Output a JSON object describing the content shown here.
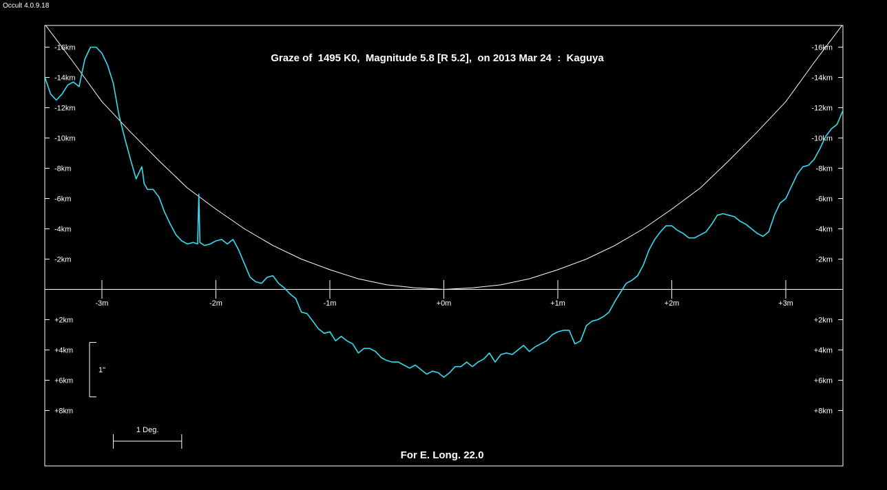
{
  "app": {
    "title": "Occult 4.0.9.18"
  },
  "chart_data": {
    "type": "line",
    "title": "Graze of  1495 K0,  Magnitude 5.8 [R 5.2],  on 2013 Mar 24  :  Kaguya",
    "footer": "For E. Long. 22.0",
    "xlabel": "",
    "ylabel": "",
    "x_unit": "minutes",
    "y_unit": "km",
    "xlim": [
      -3.5,
      3.5
    ],
    "ylim": [
      -17.5,
      11.5
    ],
    "grid": false,
    "x_ticks": [
      {
        "value": -3,
        "label": "-3m"
      },
      {
        "value": -2,
        "label": "-2m"
      },
      {
        "value": -1,
        "label": "-1m"
      },
      {
        "value": 0,
        "label": "+0m"
      },
      {
        "value": 1,
        "label": "+1m"
      },
      {
        "value": 2,
        "label": "+2m"
      },
      {
        "value": 3,
        "label": "+3m"
      }
    ],
    "y_ticks_left": [
      {
        "value": -16,
        "label": "-16km"
      },
      {
        "value": -14,
        "label": "-14km"
      },
      {
        "value": -12,
        "label": "-12km"
      },
      {
        "value": -10,
        "label": "-10km"
      },
      {
        "value": -8,
        "label": "-8km"
      },
      {
        "value": -6,
        "label": "-6km"
      },
      {
        "value": -4,
        "label": "-4km"
      },
      {
        "value": -2,
        "label": "-2km"
      },
      {
        "value": 2,
        "label": "+2km"
      },
      {
        "value": 4,
        "label": "+4km"
      },
      {
        "value": 6,
        "label": "+6km"
      },
      {
        "value": 8,
        "label": "+8km"
      }
    ],
    "y_ticks_right": [
      {
        "value": -16,
        "label": "-16km"
      },
      {
        "value": -14,
        "label": "-14km"
      },
      {
        "value": -12,
        "label": "-12km"
      },
      {
        "value": -10,
        "label": "-10km"
      },
      {
        "value": -8,
        "label": "-8km"
      },
      {
        "value": -6,
        "label": "-6km"
      },
      {
        "value": -4,
        "label": "-4km"
      },
      {
        "value": -2,
        "label": "-2km"
      },
      {
        "value": 2,
        "label": "+2km"
      },
      {
        "value": 4,
        "label": "+4km"
      },
      {
        "value": 6,
        "label": "+6km"
      },
      {
        "value": 8,
        "label": "+8km"
      }
    ],
    "scale_bars": {
      "arcsec": {
        "label": "1\"",
        "from_km": 3.5,
        "to_km": 7.1
      },
      "degree": {
        "label": "1 Deg.",
        "from_min": -2.9,
        "to_min": -2.3
      }
    },
    "colors": {
      "background": "#000000",
      "axes": "#ffffff",
      "profile": "#33e0f0",
      "path": "#ffffff"
    },
    "series": [
      {
        "kind": "path-curve",
        "x": [
          -3.5,
          -3.25,
          -3.0,
          -2.75,
          -2.5,
          -2.25,
          -2.0,
          -1.75,
          -1.5,
          -1.25,
          -1.0,
          -0.75,
          -0.5,
          -0.25,
          0.0,
          0.25,
          0.5,
          0.75,
          1.0,
          1.25,
          1.5,
          1.75,
          2.0,
          2.25,
          2.5,
          2.75,
          3.0,
          3.25,
          3.5
        ],
        "y": [
          -17.5,
          -15.0,
          -12.4,
          -10.4,
          -8.5,
          -6.7,
          -5.3,
          -4.0,
          -2.9,
          -2.0,
          -1.3,
          -0.7,
          -0.3,
          -0.1,
          0.0,
          -0.1,
          -0.3,
          -0.7,
          -1.3,
          -2.0,
          -2.9,
          -4.0,
          -5.3,
          -6.7,
          -8.5,
          -10.4,
          -12.4,
          -15.0,
          -17.5
        ]
      },
      {
        "kind": "limb-profile",
        "x": [
          -3.5,
          -3.45,
          -3.4,
          -3.35,
          -3.3,
          -3.25,
          -3.2,
          -3.15,
          -3.1,
          -3.05,
          -3.0,
          -2.95,
          -2.9,
          -2.85,
          -2.8,
          -2.75,
          -2.7,
          -2.65,
          -2.64,
          -2.63,
          -2.6,
          -2.55,
          -2.5,
          -2.45,
          -2.4,
          -2.35,
          -2.3,
          -2.25,
          -2.2,
          -2.16,
          -2.15,
          -2.14,
          -2.1,
          -2.05,
          -2.0,
          -1.95,
          -1.9,
          -1.85,
          -1.8,
          -1.75,
          -1.7,
          -1.65,
          -1.6,
          -1.55,
          -1.5,
          -1.45,
          -1.4,
          -1.35,
          -1.3,
          -1.25,
          -1.2,
          -1.15,
          -1.1,
          -1.05,
          -1.0,
          -0.95,
          -0.9,
          -0.85,
          -0.8,
          -0.75,
          -0.7,
          -0.65,
          -0.6,
          -0.55,
          -0.5,
          -0.45,
          -0.4,
          -0.35,
          -0.3,
          -0.25,
          -0.2,
          -0.15,
          -0.1,
          -0.05,
          0.0,
          0.05,
          0.1,
          0.15,
          0.2,
          0.25,
          0.3,
          0.35,
          0.4,
          0.45,
          0.5,
          0.55,
          0.6,
          0.65,
          0.7,
          0.75,
          0.8,
          0.85,
          0.9,
          0.95,
          1.0,
          1.05,
          1.1,
          1.15,
          1.2,
          1.25,
          1.3,
          1.35,
          1.4,
          1.45,
          1.5,
          1.55,
          1.6,
          1.65,
          1.7,
          1.75,
          1.8,
          1.85,
          1.9,
          1.95,
          2.0,
          2.05,
          2.1,
          2.15,
          2.2,
          2.25,
          2.3,
          2.35,
          2.4,
          2.45,
          2.5,
          2.55,
          2.6,
          2.65,
          2.7,
          2.75,
          2.8,
          2.85,
          2.9,
          2.95,
          3.0,
          3.05,
          3.1,
          3.15,
          3.2,
          3.25,
          3.3,
          3.35,
          3.4,
          3.45,
          3.5
        ],
        "y": [
          -14.0,
          -12.9,
          -12.5,
          -12.9,
          -13.5,
          -13.7,
          -13.4,
          -15.2,
          -16.0,
          -16.0,
          -15.6,
          -14.8,
          -13.6,
          -11.5,
          -10.0,
          -8.6,
          -7.3,
          -8.1,
          -7.6,
          -7.0,
          -6.6,
          -6.6,
          -6.1,
          -5.1,
          -4.3,
          -3.6,
          -3.2,
          -3.0,
          -3.1,
          -3.0,
          -6.3,
          -3.1,
          -2.9,
          -3.0,
          -3.2,
          -3.3,
          -3.0,
          -3.3,
          -2.6,
          -1.7,
          -0.8,
          -0.5,
          -0.4,
          -0.8,
          -0.9,
          -0.4,
          -0.1,
          0.3,
          0.6,
          1.5,
          1.6,
          2.1,
          2.6,
          2.9,
          2.8,
          3.4,
          3.1,
          3.4,
          3.6,
          4.2,
          3.9,
          3.9,
          4.1,
          4.5,
          4.7,
          4.8,
          4.8,
          5.0,
          5.2,
          5.0,
          5.3,
          5.6,
          5.4,
          5.5,
          5.8,
          5.5,
          5.1,
          5.1,
          4.8,
          5.1,
          4.8,
          4.6,
          4.2,
          4.8,
          4.3,
          4.2,
          4.3,
          4.0,
          3.7,
          4.1,
          3.8,
          3.6,
          3.4,
          3.0,
          2.8,
          2.7,
          2.7,
          3.6,
          3.4,
          2.4,
          2.1,
          2.0,
          1.8,
          1.5,
          0.8,
          0.2,
          -0.4,
          -0.6,
          -0.9,
          -1.6,
          -2.6,
          -3.3,
          -3.8,
          -4.2,
          -4.2,
          -3.9,
          -3.7,
          -3.4,
          -3.4,
          -3.6,
          -3.8,
          -4.3,
          -4.9,
          -5.0,
          -4.9,
          -4.8,
          -4.5,
          -4.3,
          -4.0,
          -3.7,
          -3.5,
          -3.8,
          -4.9,
          -5.7,
          -6.0,
          -6.8,
          -7.6,
          -8.1,
          -8.2,
          -8.6,
          -9.3,
          -10.1,
          -10.6,
          -10.9,
          -11.8
        ]
      }
    ]
  }
}
